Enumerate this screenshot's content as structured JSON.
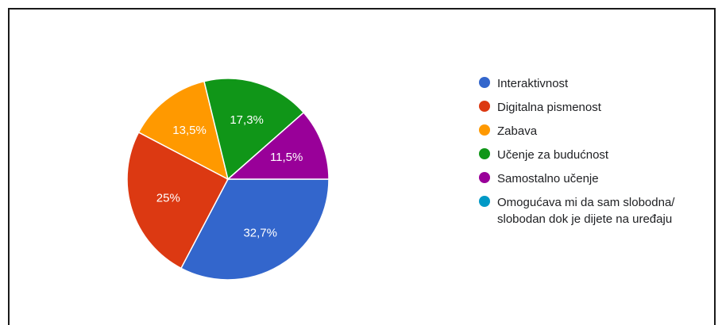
{
  "chart_data": {
    "type": "pie",
    "categories": [
      "Interaktivnost",
      "Digitalna pismenost",
      "Zabava",
      "Učenje za budućnost",
      "Samostalno učenje",
      "Omogućava mi da sam slobodna/ slobodan dok je dijete na uređaju"
    ],
    "values": [
      32.7,
      25,
      13.5,
      17.3,
      11.5,
      0
    ],
    "value_labels": [
      "32,7%",
      "25%",
      "13,5%",
      "17,3%",
      "11,5%",
      ""
    ],
    "colors": [
      "#3366cc",
      "#dc3912",
      "#ff9900",
      "#109618",
      "#990099",
      "#0099c6"
    ],
    "legend_position": "right",
    "start": "3 o'clock, clockwise"
  }
}
